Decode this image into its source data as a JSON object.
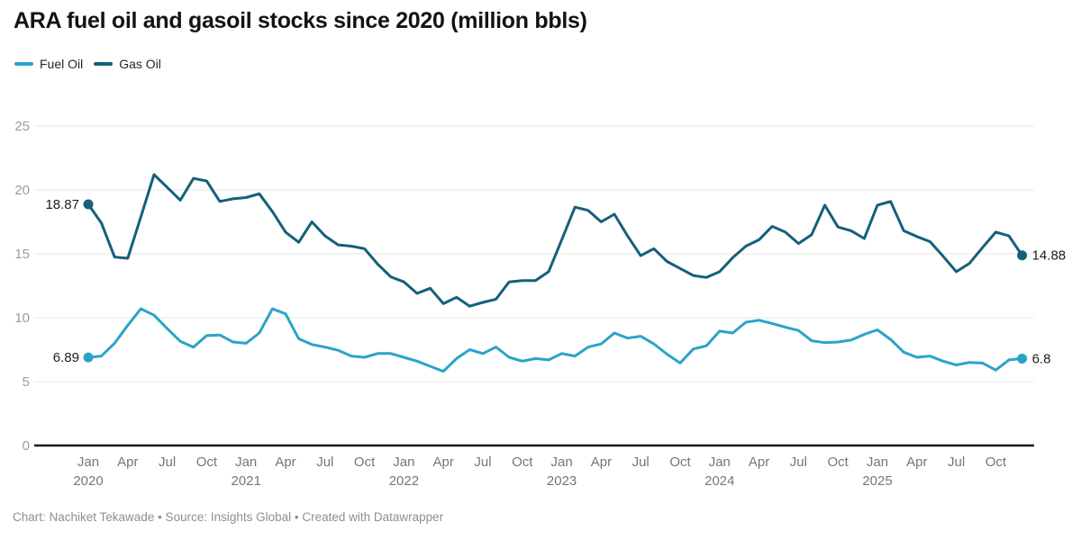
{
  "header": {
    "title": "ARA fuel oil and gasoil stocks since 2020 (million bbls)"
  },
  "legend": {
    "items": [
      {
        "label": "Fuel Oil",
        "color": "#2ba3c9"
      },
      {
        "label": "Gas Oil",
        "color": "#15607a"
      }
    ]
  },
  "footer": {
    "text": "Chart: Nachiket Tekawade • Source: Insights Global • Created with Datawrapper"
  },
  "chart_data": {
    "type": "line",
    "title": "ARA fuel oil and gasoil stocks since 2020 (million bbls)",
    "xlabel": "",
    "ylabel": "",
    "ylim": [
      0,
      25
    ],
    "y_ticks": [
      0,
      5,
      10,
      15,
      20,
      25
    ],
    "grid": true,
    "legend_position": "top-left",
    "x_unit": "month",
    "x_range": "Jan 2020 – Dec 2025",
    "x_tick_labels": [
      {
        "i": 0,
        "label": "Jan",
        "year": "2020"
      },
      {
        "i": 3,
        "label": "Apr"
      },
      {
        "i": 6,
        "label": "Jul"
      },
      {
        "i": 9,
        "label": "Oct"
      },
      {
        "i": 12,
        "label": "Jan",
        "year": "2021"
      },
      {
        "i": 15,
        "label": "Apr"
      },
      {
        "i": 18,
        "label": "Jul"
      },
      {
        "i": 21,
        "label": "Oct"
      },
      {
        "i": 24,
        "label": "Jan",
        "year": "2022"
      },
      {
        "i": 27,
        "label": "Apr"
      },
      {
        "i": 30,
        "label": "Jul"
      },
      {
        "i": 33,
        "label": "Oct"
      },
      {
        "i": 36,
        "label": "Jan",
        "year": "2023"
      },
      {
        "i": 39,
        "label": "Apr"
      },
      {
        "i": 42,
        "label": "Jul"
      },
      {
        "i": 45,
        "label": "Oct"
      },
      {
        "i": 48,
        "label": "Jan",
        "year": "2024"
      },
      {
        "i": 51,
        "label": "Apr"
      },
      {
        "i": 54,
        "label": "Jul"
      },
      {
        "i": 57,
        "label": "Oct"
      },
      {
        "i": 60,
        "label": "Jan",
        "year": "2025"
      },
      {
        "i": 63,
        "label": "Apr"
      },
      {
        "i": 66,
        "label": "Jul"
      },
      {
        "i": 69,
        "label": "Oct"
      }
    ],
    "series": [
      {
        "name": "Fuel Oil",
        "color": "#2ba3c9",
        "start_label": "6.89",
        "end_label": "6.8",
        "values": [
          6.89,
          7.0,
          8.0,
          9.4,
          10.7,
          10.2,
          9.15,
          8.15,
          7.7,
          8.6,
          8.65,
          8.1,
          8.0,
          8.8,
          10.7,
          10.3,
          8.35,
          7.9,
          7.7,
          7.45,
          7.0,
          6.9,
          7.2,
          7.2,
          6.9,
          6.6,
          6.2,
          5.8,
          6.8,
          7.5,
          7.2,
          7.7,
          6.9,
          6.6,
          6.8,
          6.7,
          7.2,
          7.0,
          7.7,
          7.95,
          8.8,
          8.4,
          8.55,
          7.95,
          7.15,
          6.45,
          7.55,
          7.8,
          8.95,
          8.8,
          9.65,
          9.8,
          9.55,
          9.25,
          9.0,
          8.2,
          8.05,
          8.1,
          8.25,
          8.7,
          9.05,
          8.3,
          7.3,
          6.9,
          7.0,
          6.6,
          6.3,
          6.5,
          6.45,
          5.9,
          6.7,
          6.8
        ]
      },
      {
        "name": "Gas Oil",
        "color": "#15607a",
        "start_label": "18.87",
        "end_label": "14.88",
        "values": [
          18.87,
          17.4,
          14.75,
          14.65,
          17.9,
          21.2,
          20.2,
          19.2,
          20.9,
          20.7,
          19.1,
          19.3,
          19.4,
          19.7,
          18.3,
          16.7,
          15.9,
          17.5,
          16.4,
          15.7,
          15.6,
          15.4,
          14.2,
          13.2,
          12.8,
          11.9,
          12.3,
          11.1,
          11.6,
          10.9,
          11.2,
          11.45,
          12.8,
          12.9,
          12.9,
          13.6,
          16.1,
          18.65,
          18.4,
          17.5,
          18.1,
          16.4,
          14.85,
          15.4,
          14.4,
          13.85,
          13.3,
          13.15,
          13.6,
          14.7,
          15.6,
          16.1,
          17.15,
          16.7,
          15.8,
          16.5,
          18.8,
          17.1,
          16.8,
          16.2,
          18.8,
          19.1,
          16.8,
          16.35,
          15.95,
          14.8,
          13.6,
          14.25,
          15.5,
          16.7,
          16.4,
          14.88
        ]
      }
    ]
  }
}
